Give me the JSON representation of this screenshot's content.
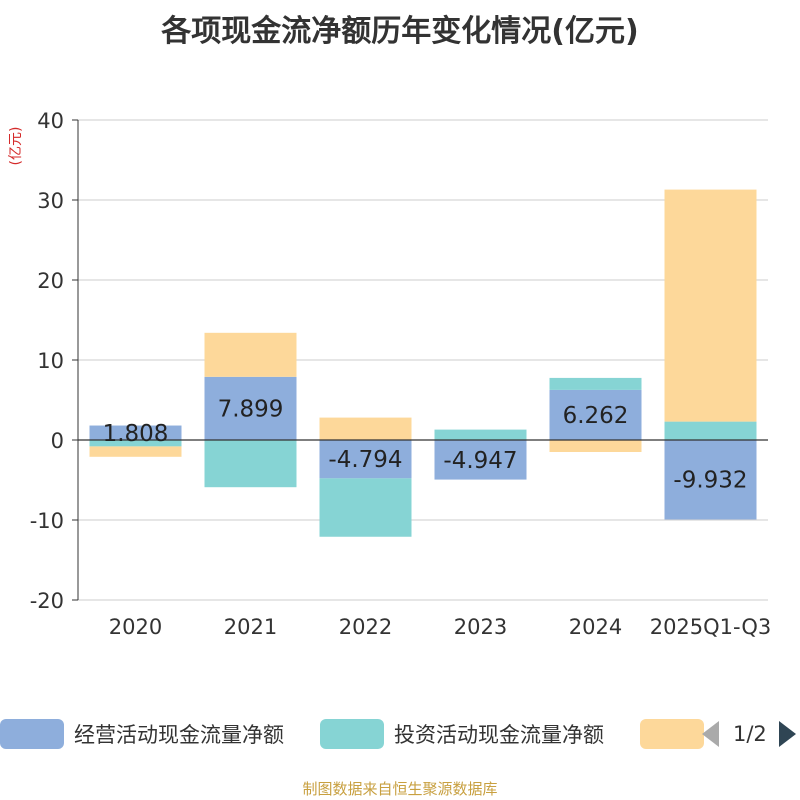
{
  "chart_data": {
    "type": "bar",
    "stacked": true,
    "title": "各项现金流净额历年变化情况(亿元)",
    "ylabel": "(亿元)",
    "xlabel": "",
    "ylim": [
      -20,
      40
    ],
    "yticks": [
      -20,
      -10,
      0,
      10,
      20,
      30,
      40
    ],
    "grid": true,
    "categories": [
      "2020",
      "2021",
      "2022",
      "2023",
      "2024",
      "2025Q1-Q3"
    ],
    "series": [
      {
        "name": "经营活动现金流量净额",
        "color": "#8eaedc",
        "values": [
          1.808,
          7.899,
          -4.794,
          -4.947,
          6.262,
          -9.932
        ]
      },
      {
        "name": "投资活动现金流量净额",
        "color": "#86d4d4",
        "values": [
          -0.8,
          -5.9,
          -7.3,
          1.3,
          1.5,
          2.3
        ]
      },
      {
        "name": "",
        "color": "#fdd89a",
        "values": [
          -1.3,
          5.5,
          2.8,
          0,
          -1.5,
          29.0
        ]
      }
    ],
    "data_labels_series": 0
  },
  "legend": {
    "items": [
      {
        "label": "经营活动现金流量净额",
        "color": "#8eaedc"
      },
      {
        "label": "投资活动现金流量净额",
        "color": "#86d4d4"
      },
      {
        "label": "",
        "color": "#fdd89a"
      }
    ],
    "page": "1/2"
  },
  "source": "制图数据来自恒生聚源数据库"
}
